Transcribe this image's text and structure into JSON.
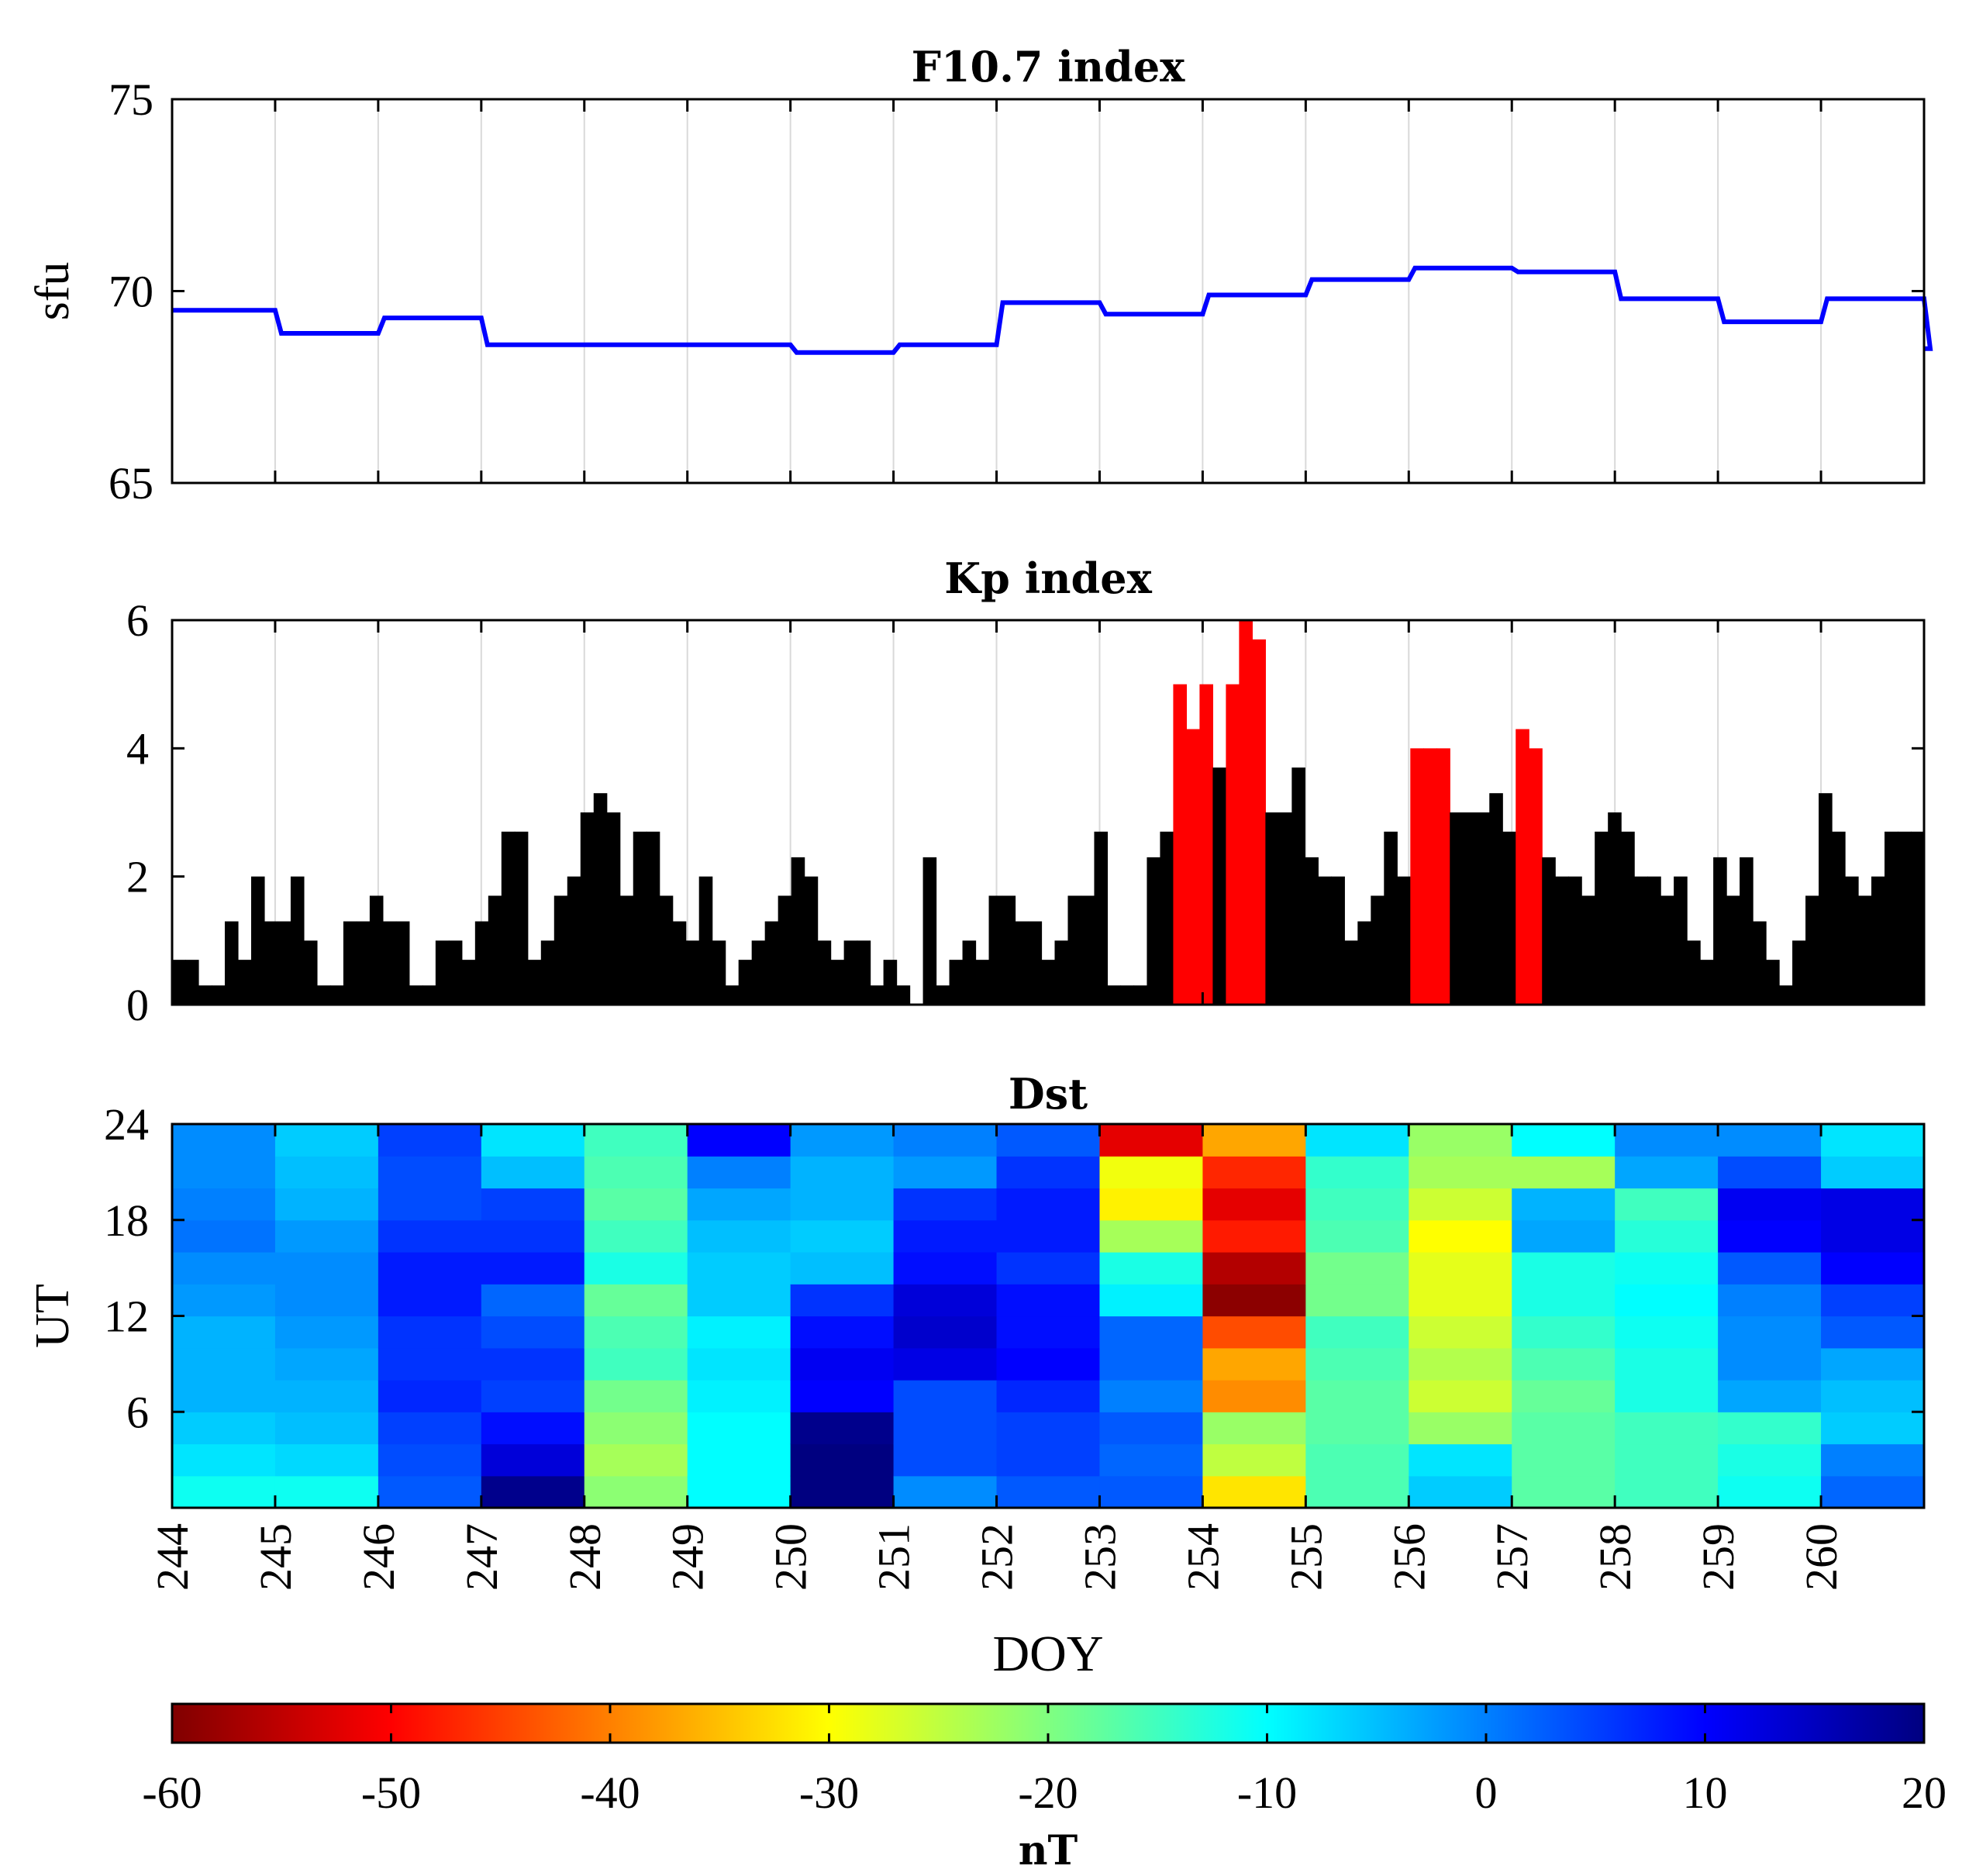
{
  "chart_data": [
    {
      "id": "f107",
      "type": "line",
      "title": "F10.7 index",
      "ylabel": "sfu",
      "xlabel": "",
      "xlim": [
        244,
        261
      ],
      "ylim": [
        65,
        75
      ],
      "yticks": [
        "65",
        "70",
        "75"
      ],
      "grid": "vertical",
      "color": "#0000ff",
      "x": [
        244,
        245,
        246,
        247,
        248,
        249,
        250,
        251,
        252,
        253,
        254,
        255,
        256,
        257,
        258,
        259,
        260,
        261
      ],
      "values": [
        69.5,
        68.9,
        69.3,
        68.6,
        68.6,
        68.6,
        68.4,
        68.6,
        69.7,
        69.4,
        69.9,
        70.3,
        70.6,
        70.5,
        69.8,
        69.2,
        69.8,
        68.5
      ]
    },
    {
      "id": "kp",
      "type": "bar",
      "title": "Kp index",
      "ylabel": "",
      "xlabel": "",
      "xlim": [
        244,
        261
      ],
      "ylim": [
        0,
        6
      ],
      "yticks": [
        "0",
        "2",
        "4",
        "6"
      ],
      "grid": "vertical",
      "threshold": 4,
      "colors": {
        "normal": "#000000",
        "storm": "#ff0000"
      },
      "values": [
        0.7,
        0.7,
        0.3,
        0.3,
        1.3,
        0.7,
        2.0,
        1.3,
        1.3,
        2.0,
        1.0,
        0.3,
        0.3,
        1.3,
        1.3,
        1.7,
        1.3,
        1.3,
        0.3,
        0.3,
        1.0,
        1.0,
        0.7,
        1.3,
        1.7,
        2.7,
        2.7,
        0.7,
        1.0,
        1.7,
        2.0,
        3.0,
        3.3,
        3.0,
        1.7,
        2.7,
        2.7,
        1.7,
        1.3,
        1.0,
        2.0,
        1.0,
        0.3,
        0.7,
        1.0,
        1.3,
        1.7,
        2.3,
        2.0,
        1.0,
        0.7,
        1.0,
        1.0,
        0.3,
        0.7,
        0.3,
        0.0,
        2.3,
        0.3,
        0.7,
        1.0,
        0.7,
        1.7,
        1.7,
        1.3,
        1.3,
        0.7,
        1.0,
        1.7,
        1.7,
        2.7,
        0.3,
        0.3,
        0.3,
        2.3,
        2.7,
        5.0,
        4.3,
        5.0,
        3.7,
        5.0,
        6.0,
        5.7,
        3.0,
        3.0,
        3.7,
        2.3,
        2.0,
        2.0,
        1.0,
        1.3,
        1.7,
        2.7,
        2.0,
        4.0,
        4.0,
        4.0,
        3.0,
        3.0,
        3.0,
        3.3,
        2.7,
        4.3,
        4.0,
        2.3,
        2.0,
        2.0,
        1.7,
        2.7,
        3.0,
        2.7,
        2.0,
        2.0,
        1.7,
        2.0,
        1.0,
        0.7,
        2.3,
        1.7,
        2.3,
        1.3,
        0.7,
        0.3,
        1.0,
        1.7,
        3.3,
        2.7,
        2.0,
        1.7,
        2.0,
        2.7,
        2.7,
        2.7
      ]
    },
    {
      "id": "dst",
      "type": "heatmap",
      "title": "Dst",
      "ylabel": "UT",
      "xlabel": "DOY",
      "xlim": [
        244,
        261
      ],
      "ylim": [
        0,
        24
      ],
      "yticks": [
        "6",
        "12",
        "18",
        "24"
      ],
      "xticks": [
        "244",
        "245",
        "246",
        "247",
        "248",
        "249",
        "250",
        "251",
        "252",
        "253",
        "254",
        "255",
        "256",
        "257",
        "258",
        "259",
        "260"
      ],
      "rows_per_day": 12,
      "cells_bottom_to_top_per_day": [
        [
          -11,
          -8,
          -6,
          -4,
          -4,
          -4,
          -2,
          -1,
          1,
          0,
          -1,
          -1
        ],
        [
          -11,
          -7,
          -5,
          -4,
          -3,
          -2,
          -1,
          -1,
          -2,
          -4,
          -5,
          -6
        ],
        [
          3,
          4,
          5,
          7,
          6,
          6,
          8,
          8,
          6,
          4,
          4,
          5
        ],
        [
          19,
          13,
          9,
          5,
          6,
          4,
          2,
          8,
          6,
          5,
          -5,
          -8
        ],
        [
          -21,
          -23,
          -21,
          -19,
          -15,
          -16,
          -18,
          -12,
          -15,
          -17,
          -16,
          -15
        ],
        [
          -10,
          -10,
          -10,
          -9,
          -8,
          -9,
          -6,
          -6,
          -5,
          -3,
          0,
          10
        ],
        [
          20,
          20,
          19,
          10,
          11,
          9,
          6,
          -5,
          -6,
          -4,
          -4,
          -2
        ],
        [
          -1,
          4,
          4,
          4,
          12,
          14,
          13,
          9,
          8,
          6,
          -2,
          0
        ],
        [
          3,
          5,
          5,
          7,
          10,
          9,
          9,
          6,
          8,
          8,
          6,
          3
        ],
        [
          3,
          2,
          3,
          0,
          2,
          2,
          -9,
          -12,
          -23,
          -31,
          -29,
          -52
        ],
        [
          -32,
          -25,
          -22,
          -39,
          -37,
          -44,
          -59,
          -56,
          -48,
          -52,
          -47,
          -37
        ],
        [
          -16,
          -16,
          -17,
          -17,
          -16,
          -15,
          -19,
          -19,
          -16,
          -15,
          -14,
          -8
        ],
        [
          -6,
          -8,
          -22,
          -26,
          -24,
          -26,
          -28,
          -28,
          -30,
          -26,
          -23,
          -22
        ],
        [
          -17,
          -17,
          -17,
          -18,
          -16,
          -14,
          -12,
          -12,
          -3,
          -4,
          -23,
          -10
        ],
        [
          -15,
          -15,
          -15,
          -12,
          -12,
          -11,
          -10,
          -11,
          -13,
          -15,
          -3,
          -1
        ],
        [
          -11,
          -12,
          -14,
          -3,
          -1,
          -1,
          0,
          3,
          10,
          11,
          4,
          -1
        ],
        [
          2,
          0,
          -6,
          -5,
          -3,
          3,
          5,
          10,
          12,
          12,
          -6,
          -8
        ]
      ]
    },
    {
      "id": "colorbar",
      "type": "colorbar",
      "colormap": "jet-reversed",
      "range": [
        -60,
        20
      ],
      "ticks": [
        "-60",
        "-50",
        "-40",
        "-30",
        "-20",
        "-10",
        "0",
        "10",
        "20"
      ],
      "label": "nT"
    }
  ]
}
